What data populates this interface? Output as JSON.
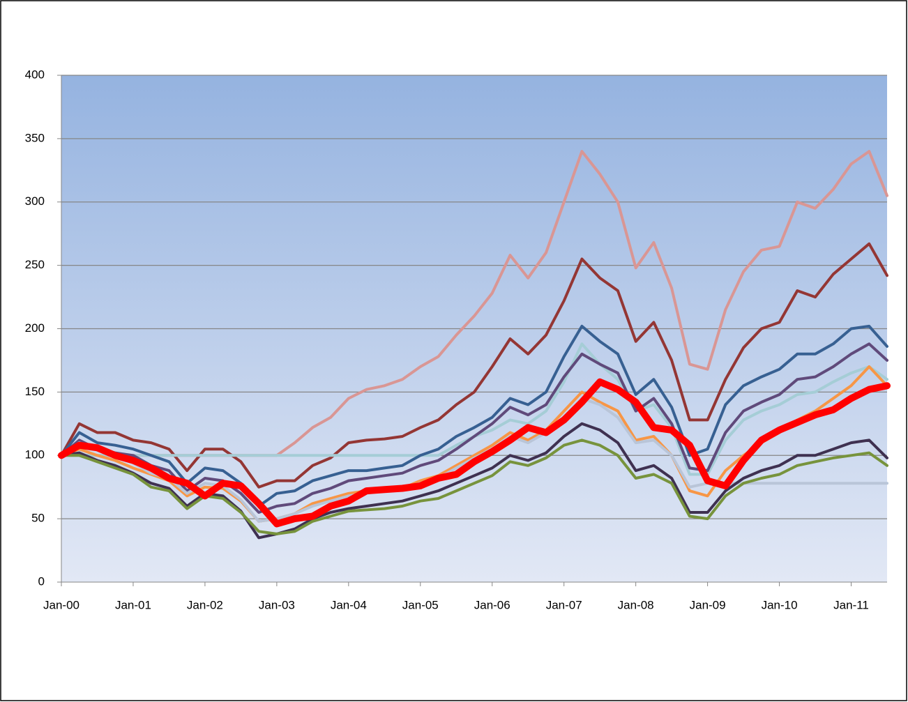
{
  "chart_data": {
    "type": "line",
    "categories": [
      "Jan-00",
      null,
      null,
      null,
      "Jan-01",
      null,
      null,
      null,
      "Jan-02",
      null,
      null,
      null,
      "Jan-03",
      null,
      null,
      null,
      "Jan-04",
      null,
      null,
      null,
      "Jan-05",
      null,
      null,
      null,
      "Jan-06",
      null,
      null,
      null,
      "Jan-07",
      null,
      null,
      null,
      "Jan-08",
      null,
      null,
      null,
      "Jan-09",
      null,
      null,
      null,
      "Jan-10",
      null,
      null,
      null,
      "Jan-11",
      null,
      null
    ],
    "ylim": [
      0,
      400
    ],
    "yticks": [
      0,
      50,
      100,
      150,
      200,
      250,
      300,
      350,
      400
    ],
    "grid": true,
    "series": [
      {
        "color": "#d99694",
        "width": 4,
        "values": [
          100,
          100,
          100,
          100,
          100,
          100,
          100,
          100,
          100,
          100,
          100,
          100,
          100,
          110,
          122,
          130,
          145,
          152,
          155,
          160,
          170,
          178,
          195,
          210,
          228,
          258,
          240,
          260,
          300,
          340,
          322,
          300,
          248,
          268,
          232,
          172,
          168,
          215,
          245,
          262,
          265,
          300,
          295,
          310,
          330,
          340,
          305
        ]
      },
      {
        "color": "#943634",
        "width": 4,
        "values": [
          100,
          125,
          118,
          118,
          112,
          110,
          105,
          88,
          105,
          105,
          95,
          75,
          80,
          80,
          92,
          98,
          110,
          112,
          113,
          115,
          122,
          128,
          140,
          150,
          170,
          192,
          180,
          195,
          222,
          255,
          240,
          230,
          190,
          205,
          175,
          128,
          128,
          160,
          185,
          200,
          205,
          230,
          225,
          243,
          255,
          267,
          242
        ]
      },
      {
        "color": "#a5cdd6",
        "width": 4,
        "values": [
          100,
          100,
          100,
          100,
          100,
          100,
          100,
          100,
          100,
          100,
          100,
          100,
          100,
          100,
          100,
          100,
          100,
          100,
          100,
          100,
          100,
          100,
          108,
          115,
          120,
          128,
          125,
          135,
          158,
          188,
          172,
          160,
          135,
          140,
          122,
          85,
          85,
          112,
          128,
          135,
          140,
          148,
          150,
          158,
          165,
          170,
          160
        ]
      },
      {
        "color": "#376092",
        "width": 4,
        "values": [
          100,
          118,
          110,
          108,
          105,
          100,
          95,
          78,
          90,
          88,
          78,
          60,
          70,
          72,
          80,
          84,
          88,
          88,
          90,
          92,
          100,
          105,
          115,
          122,
          130,
          145,
          140,
          150,
          178,
          202,
          190,
          180,
          148,
          160,
          138,
          100,
          105,
          140,
          155,
          162,
          168,
          180,
          180,
          188,
          200,
          202,
          186
        ]
      },
      {
        "color": "#604a7b",
        "width": 4,
        "values": [
          100,
          112,
          105,
          102,
          100,
          92,
          88,
          72,
          82,
          80,
          70,
          55,
          60,
          62,
          70,
          74,
          80,
          82,
          84,
          86,
          92,
          96,
          105,
          115,
          125,
          138,
          132,
          140,
          162,
          180,
          172,
          165,
          135,
          145,
          125,
          90,
          88,
          118,
          135,
          142,
          148,
          160,
          162,
          170,
          180,
          188,
          175
        ]
      },
      {
        "color": "#f79646",
        "width": 4,
        "values": [
          100,
          105,
          100,
          96,
          90,
          85,
          80,
          68,
          75,
          74,
          64,
          48,
          50,
          54,
          62,
          66,
          70,
          72,
          72,
          74,
          80,
          84,
          92,
          100,
          108,
          118,
          112,
          120,
          135,
          150,
          142,
          135,
          112,
          115,
          100,
          72,
          68,
          88,
          100,
          110,
          118,
          128,
          135,
          145,
          155,
          170,
          155
        ]
      },
      {
        "color": "#b9c5d8",
        "width": 4,
        "values": [
          100,
          110,
          104,
          100,
          94,
          86,
          82,
          70,
          78,
          76,
          65,
          48,
          50,
          54,
          60,
          64,
          68,
          70,
          72,
          74,
          78,
          82,
          90,
          98,
          105,
          115,
          110,
          118,
          130,
          145,
          140,
          130,
          110,
          112,
          100,
          75,
          78,
          78,
          78,
          78,
          78,
          78,
          78,
          78,
          78,
          78,
          78
        ]
      },
      {
        "color": "#3f3151",
        "width": 4,
        "values": [
          100,
          102,
          96,
          92,
          86,
          78,
          74,
          60,
          70,
          68,
          56,
          35,
          38,
          42,
          50,
          55,
          58,
          60,
          62,
          64,
          68,
          72,
          78,
          84,
          90,
          100,
          96,
          102,
          115,
          125,
          120,
          110,
          88,
          92,
          82,
          55,
          55,
          72,
          82,
          88,
          92,
          100,
          100,
          105,
          110,
          112,
          98
        ]
      },
      {
        "color": "#77933c",
        "width": 4,
        "values": [
          100,
          100,
          95,
          90,
          85,
          75,
          72,
          58,
          68,
          66,
          55,
          40,
          38,
          40,
          48,
          52,
          56,
          57,
          58,
          60,
          64,
          66,
          72,
          78,
          84,
          95,
          92,
          98,
          108,
          112,
          108,
          100,
          82,
          85,
          78,
          52,
          50,
          68,
          78,
          82,
          85,
          92,
          95,
          98,
          100,
          102,
          92
        ]
      },
      {
        "color": "#ff0000",
        "width": 10,
        "values": [
          100,
          108,
          106,
          100,
          96,
          90,
          82,
          78,
          68,
          78,
          76,
          62,
          46,
          50,
          52,
          60,
          64,
          72,
          73,
          74,
          76,
          82,
          85,
          95,
          103,
          112,
          122,
          118,
          128,
          142,
          158,
          152,
          142,
          122,
          120,
          108,
          80,
          76,
          96,
          112,
          120,
          126,
          132,
          136,
          145,
          152,
          155
        ]
      }
    ]
  }
}
